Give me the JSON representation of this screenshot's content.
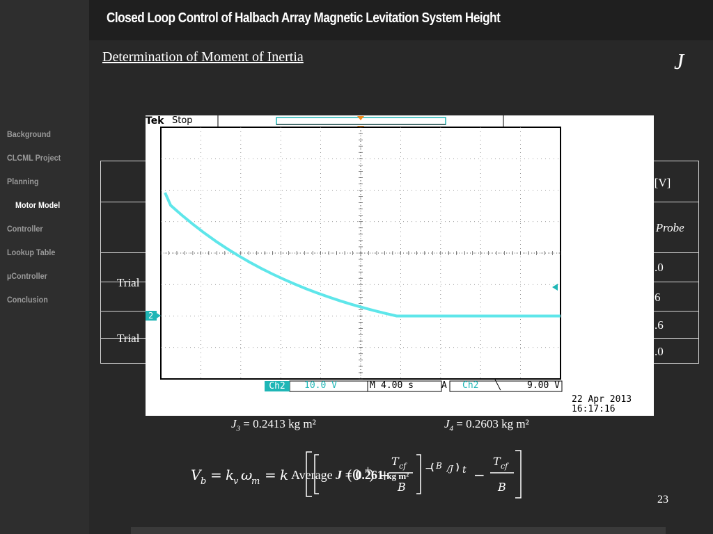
{
  "header": {
    "title": "Closed Loop Control of Halbach Array Magnetic Levitation System Height"
  },
  "sidebar": {
    "items": [
      {
        "label": "Background",
        "active": false
      },
      {
        "label": "CLCML Project",
        "active": false
      },
      {
        "label": "Planning",
        "active": false
      },
      {
        "label": "Motor Model",
        "active": true
      },
      {
        "label": "Controller",
        "active": false
      },
      {
        "label": "Lookup Table",
        "active": false
      },
      {
        "label": "µController",
        "active": false
      },
      {
        "label": "Conclusion",
        "active": false
      }
    ]
  },
  "slide": {
    "subtitle": "Determination of Moment of Inertia",
    "symbol": "J",
    "page_number": "23"
  },
  "table": {
    "header_right": ")[V]",
    "row2_right": "e Probe",
    "trial_a": "Trial",
    "trial_b": "Trial",
    "cells_right": [
      ".0",
      "6",
      ".6",
      ".0"
    ]
  },
  "scope": {
    "brand": "Tek",
    "state": "Stop",
    "channel": "Ch2",
    "volts_per_div": "10.0 V",
    "time_label": "M",
    "time_per_div": "4.00 s",
    "trigger_label": "A",
    "trigger_channel": "Ch2",
    "trigger_slope": "╲",
    "trigger_level": "9.00 V",
    "date": "22 Apr  2013",
    "time": "16:17:16",
    "marker": "2",
    "accent_color": "#1fb6b6"
  },
  "results": {
    "j3_label": "J",
    "j3_sub": "3",
    "j3_value": " = 0.2413 kg m²",
    "j4_label": "J",
    "j4_sub": "4",
    "j4_value": " = 0.2603 kg m²",
    "average_label": "Average",
    "average_symbol": "J",
    "average_value": "= 0.261",
    "average_unit": "kg m²"
  }
}
